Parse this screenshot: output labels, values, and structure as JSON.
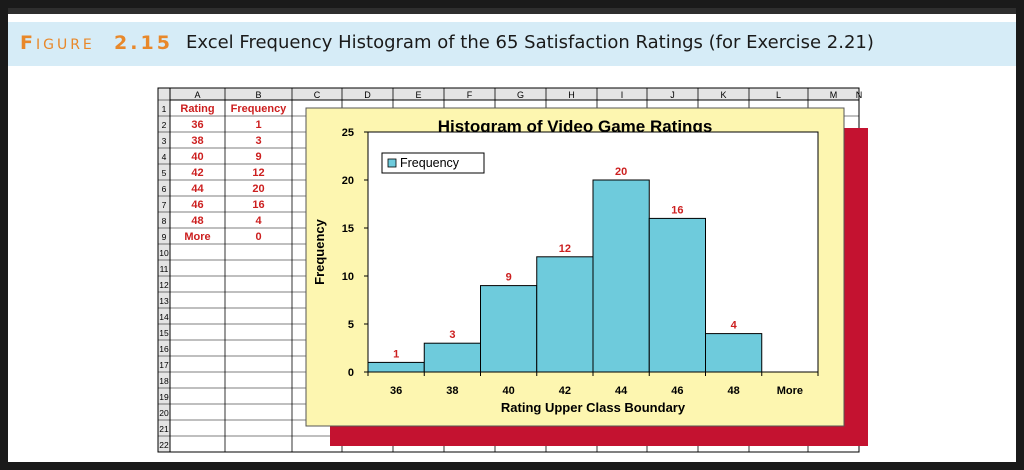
{
  "figure": {
    "label_big1": "F",
    "label_small": "IGURE",
    "label_num": "2.15",
    "caption": "Excel Frequency Histogram of the 65 Satisfaction Ratings (for Exercise 2.21)"
  },
  "spreadsheet": {
    "columns": [
      "A",
      "B",
      "C",
      "D",
      "E",
      "F",
      "G",
      "H",
      "I",
      "J",
      "K",
      "L",
      "M",
      "N"
    ],
    "rows": [
      "1",
      "2",
      "3",
      "4",
      "5",
      "6",
      "7",
      "8",
      "9",
      "10",
      "11",
      "12",
      "13",
      "14",
      "15",
      "16",
      "17",
      "18",
      "19",
      "20",
      "21",
      "22"
    ],
    "header_rating": "Rating",
    "header_frequency": "Frequency",
    "ratings": [
      "36",
      "38",
      "40",
      "42",
      "44",
      "46",
      "48",
      "More"
    ],
    "frequencies": [
      "1",
      "3",
      "9",
      "12",
      "20",
      "16",
      "4",
      "0"
    ]
  },
  "colors": {
    "bar_fill": "#6ecbdc",
    "bar_stroke": "#000000",
    "chart_area": "#fdf6b0",
    "shadow": "#c41230",
    "data_label": "#cc1f1f",
    "header_bg": "#d6ecf7",
    "figure_label": "#e8882a"
  },
  "chart_data": {
    "type": "bar",
    "title": "Histogram of Video Game Ratings",
    "xlabel": "Rating Upper Class Boundary",
    "ylabel": "Frequency",
    "categories": [
      "36",
      "38",
      "40",
      "42",
      "44",
      "46",
      "48",
      "More"
    ],
    "series": [
      {
        "name": "Frequency",
        "values": [
          1,
          3,
          9,
          12,
          20,
          16,
          4,
          0
        ]
      }
    ],
    "yticks": [
      0,
      5,
      10,
      15,
      20,
      25
    ],
    "ylim": [
      0,
      25
    ],
    "legend": "top-left",
    "grid": false,
    "data_labels": true
  }
}
